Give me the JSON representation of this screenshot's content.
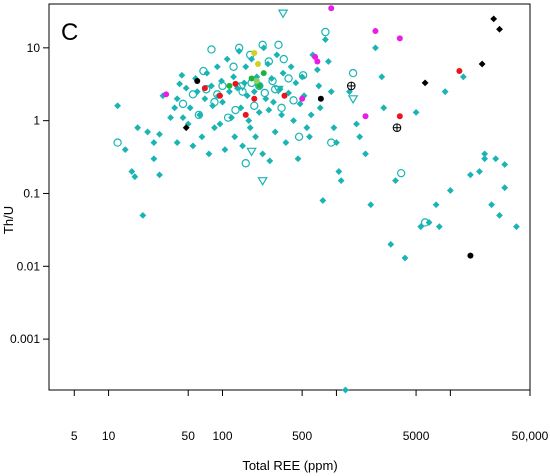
{
  "chart_data": {
    "type": "scatter",
    "panel_label": "c",
    "xlabel": "Total REE (ppm)",
    "ylabel": "Th/U",
    "x_scale": "log",
    "y_scale": "log",
    "xlim": [
      3,
      50000
    ],
    "ylim": [
      0.0002,
      40
    ],
    "x_ticks": [
      {
        "value": 5,
        "label": "5"
      },
      {
        "value": 10,
        "label": "10"
      },
      {
        "value": 50,
        "label": "50"
      },
      {
        "value": 100,
        "label": "100"
      },
      {
        "value": 500,
        "label": "500"
      },
      {
        "value": 5000,
        "label": "5000"
      },
      {
        "value": 50000,
        "label": "50,000"
      }
    ],
    "x_minor_ticks": [
      1000,
      10000
    ],
    "y_ticks": [
      {
        "value": 10,
        "label": "10"
      },
      {
        "value": 1,
        "label": "1"
      },
      {
        "value": 0.1,
        "label": "0.1"
      },
      {
        "value": 0.01,
        "label": "0.01"
      },
      {
        "value": 0.001,
        "label": "0.001"
      }
    ],
    "grid": false,
    "legend": "none",
    "colors": {
      "cyan": "#1ab4b4",
      "red": "#e8141e",
      "black": "#000000",
      "magenta": "#e61ee6",
      "green": "#1eb43c",
      "yellow": "#d2d21e",
      "lightgreen": "#8cd25a"
    },
    "series": [
      {
        "marker": "filled-diamond",
        "color": "cyan",
        "points": [
          [
            12,
            1.6
          ],
          [
            14,
            0.4
          ],
          [
            16,
            0.2
          ],
          [
            17,
            0.17
          ],
          [
            18,
            0.8
          ],
          [
            20,
            0.05
          ],
          [
            22,
            0.7
          ],
          [
            25,
            0.3
          ],
          [
            25,
            0.5
          ],
          [
            28,
            0.18
          ],
          [
            28,
            0.65
          ],
          [
            30,
            2.2
          ],
          [
            35,
            1.1
          ],
          [
            38,
            1.5
          ],
          [
            40,
            2.0
          ],
          [
            40,
            0.5
          ],
          [
            42,
            3.2
          ],
          [
            44,
            4.2
          ],
          [
            45,
            1.1
          ],
          [
            48,
            2.8
          ],
          [
            50,
            0.9
          ],
          [
            52,
            1.5
          ],
          [
            55,
            0.45
          ],
          [
            58,
            3.8
          ],
          [
            60,
            2.5
          ],
          [
            63,
            1.2
          ],
          [
            66,
            0.6
          ],
          [
            70,
            2.0
          ],
          [
            73,
            4.5
          ],
          [
            76,
            0.35
          ],
          [
            80,
            3.0
          ],
          [
            82,
            1.6
          ],
          [
            85,
            0.8
          ],
          [
            90,
            5.5
          ],
          [
            92,
            2.2
          ],
          [
            95,
            0.9
          ],
          [
            98,
            3.5
          ],
          [
            100,
            1.8
          ],
          [
            105,
            0.4
          ],
          [
            110,
            7.0
          ],
          [
            115,
            2.5
          ],
          [
            120,
            1.1
          ],
          [
            125,
            4.0
          ],
          [
            128,
            0.6
          ],
          [
            135,
            2.8
          ],
          [
            140,
            9.0
          ],
          [
            145,
            1.5
          ],
          [
            150,
            0.45
          ],
          [
            155,
            3.3
          ],
          [
            160,
            5.5
          ],
          [
            165,
            2.2
          ],
          [
            170,
            1.0
          ],
          [
            175,
            0.8
          ],
          [
            180,
            7.0
          ],
          [
            190,
            2.5
          ],
          [
            195,
            0.6
          ],
          [
            200,
            4.0
          ],
          [
            210,
            1.3
          ],
          [
            215,
            3.0
          ],
          [
            225,
            0.35
          ],
          [
            230,
            10.0
          ],
          [
            240,
            2.0
          ],
          [
            250,
            6.0
          ],
          [
            255,
            1.4
          ],
          [
            260,
            0.28
          ],
          [
            270,
            3.8
          ],
          [
            280,
            1.8
          ],
          [
            290,
            0.7
          ],
          [
            300,
            8.0
          ],
          [
            320,
            2.7
          ],
          [
            330,
            1.2
          ],
          [
            340,
            4.5
          ],
          [
            360,
            0.5
          ],
          [
            380,
            2.4
          ],
          [
            400,
            5.5
          ],
          [
            420,
            1.0
          ],
          [
            440,
            3.3
          ],
          [
            460,
            0.3
          ],
          [
            480,
            1.7
          ],
          [
            500,
            4.0
          ],
          [
            520,
            2.2
          ],
          [
            550,
            0.8
          ],
          [
            580,
            0.6
          ],
          [
            600,
            1.2
          ],
          [
            620,
            8.0
          ],
          [
            680,
            5.0
          ],
          [
            700,
            3.0
          ],
          [
            720,
            1.5
          ],
          [
            760,
            0.08
          ],
          [
            800,
            13.0
          ],
          [
            850,
            6.5
          ],
          [
            900,
            2.5
          ],
          [
            950,
            0.8
          ],
          [
            1000,
            0.5
          ],
          [
            1050,
            0.2
          ],
          [
            1100,
            0.15
          ],
          [
            1200,
            0.0002
          ],
          [
            1300,
            2.5
          ],
          [
            1500,
            0.9
          ],
          [
            1600,
            0.6
          ],
          [
            1800,
            0.35
          ],
          [
            2000,
            0.07
          ],
          [
            2200,
            10.0
          ],
          [
            2500,
            4.0
          ],
          [
            2600,
            1.5
          ],
          [
            3000,
            0.02
          ],
          [
            3300,
            0.15
          ],
          [
            4000,
            0.013
          ],
          [
            5000,
            1.3
          ],
          [
            5500,
            0.035
          ],
          [
            6500,
            0.04
          ],
          [
            7500,
            0.07
          ],
          [
            8000,
            0.035
          ],
          [
            9000,
            2.5
          ],
          [
            10000,
            0.11
          ],
          [
            13000,
            4.0
          ],
          [
            15000,
            0.18
          ],
          [
            18000,
            0.2
          ],
          [
            20000,
            0.35
          ],
          [
            20000,
            0.3
          ],
          [
            23000,
            0.07
          ],
          [
            25000,
            0.3
          ],
          [
            27000,
            0.05
          ],
          [
            30000,
            0.12
          ],
          [
            30000,
            0.25
          ],
          [
            38000,
            0.035
          ]
        ]
      },
      {
        "marker": "open-circle",
        "color": "cyan",
        "points": [
          [
            12,
            0.5
          ],
          [
            45,
            1.7
          ],
          [
            55,
            2.3
          ],
          [
            62,
            1.2
          ],
          [
            68,
            4.8
          ],
          [
            72,
            2.7
          ],
          [
            80,
            9.5
          ],
          [
            85,
            1.8
          ],
          [
            90,
            2.3
          ],
          [
            100,
            3.0
          ],
          [
            112,
            1.1
          ],
          [
            125,
            5.5
          ],
          [
            130,
            1.4
          ],
          [
            140,
            10.0
          ],
          [
            150,
            2.5
          ],
          [
            160,
            0.26
          ],
          [
            175,
            8.0
          ],
          [
            180,
            3.3
          ],
          [
            190,
            1.6
          ],
          [
            210,
            3.0
          ],
          [
            225,
            11.0
          ],
          [
            235,
            2.4
          ],
          [
            255,
            6.5
          ],
          [
            275,
            3.5
          ],
          [
            290,
            2.7
          ],
          [
            310,
            11.0
          ],
          [
            330,
            1.5
          ],
          [
            345,
            7.0
          ],
          [
            380,
            3.8
          ],
          [
            420,
            1.9
          ],
          [
            470,
            0.6
          ],
          [
            510,
            4.2
          ],
          [
            800,
            16.5
          ],
          [
            900,
            0.5
          ],
          [
            1400,
            4.5
          ],
          [
            3700,
            0.19
          ],
          [
            6000,
            0.04
          ]
        ]
      },
      {
        "marker": "open-triangle-down",
        "color": "cyan",
        "points": [
          [
            150,
            3.0
          ],
          [
            180,
            0.38
          ],
          [
            225,
            0.15
          ],
          [
            310,
            2.7
          ],
          [
            340,
            30.0
          ],
          [
            1400,
            2.0
          ]
        ]
      },
      {
        "marker": "filled-circle",
        "color": "red",
        "points": [
          [
            70,
            2.8
          ],
          [
            95,
            2.2
          ],
          [
            130,
            3.2
          ],
          [
            160,
            1.2
          ],
          [
            190,
            2.0
          ],
          [
            350,
            2.2
          ],
          [
            3600,
            1.15
          ],
          [
            12000,
            4.8
          ]
        ]
      },
      {
        "marker": "filled-circle",
        "color": "black",
        "points": [
          [
            60,
            3.5
          ],
          [
            730,
            2.0
          ],
          [
            15000,
            0.014
          ]
        ]
      },
      {
        "marker": "filled-diamond",
        "color": "black",
        "points": [
          [
            48,
            0.8
          ],
          [
            6000,
            3.3
          ],
          [
            19000,
            6.0
          ],
          [
            24000,
            25.0
          ],
          [
            27000,
            18.0
          ]
        ]
      },
      {
        "marker": "filled-circle",
        "color": "magenta",
        "points": [
          [
            32,
            2.3
          ],
          [
            500,
            2.0
          ],
          [
            650,
            7.5
          ],
          [
            680,
            6.5
          ],
          [
            900,
            35.0
          ],
          [
            1800,
            1.15
          ],
          [
            2200,
            17.0
          ],
          [
            3600,
            13.5
          ]
        ]
      },
      {
        "marker": "filled-circle",
        "color": "green",
        "points": [
          [
            115,
            3.0
          ],
          [
            180,
            3.8
          ],
          [
            230,
            4.5
          ],
          [
            210,
            3.0
          ]
        ]
      },
      {
        "marker": "filled-circle",
        "color": "yellow",
        "points": [
          [
            190,
            8.5
          ],
          [
            205,
            6.0
          ]
        ]
      },
      {
        "marker": "filled-circle",
        "color": "lightgreen",
        "points": [
          [
            200,
            3.5
          ]
        ]
      },
      {
        "marker": "circle-plus",
        "color": "black",
        "points": [
          [
            1350,
            3.0
          ],
          [
            3400,
            0.8
          ]
        ]
      }
    ]
  }
}
